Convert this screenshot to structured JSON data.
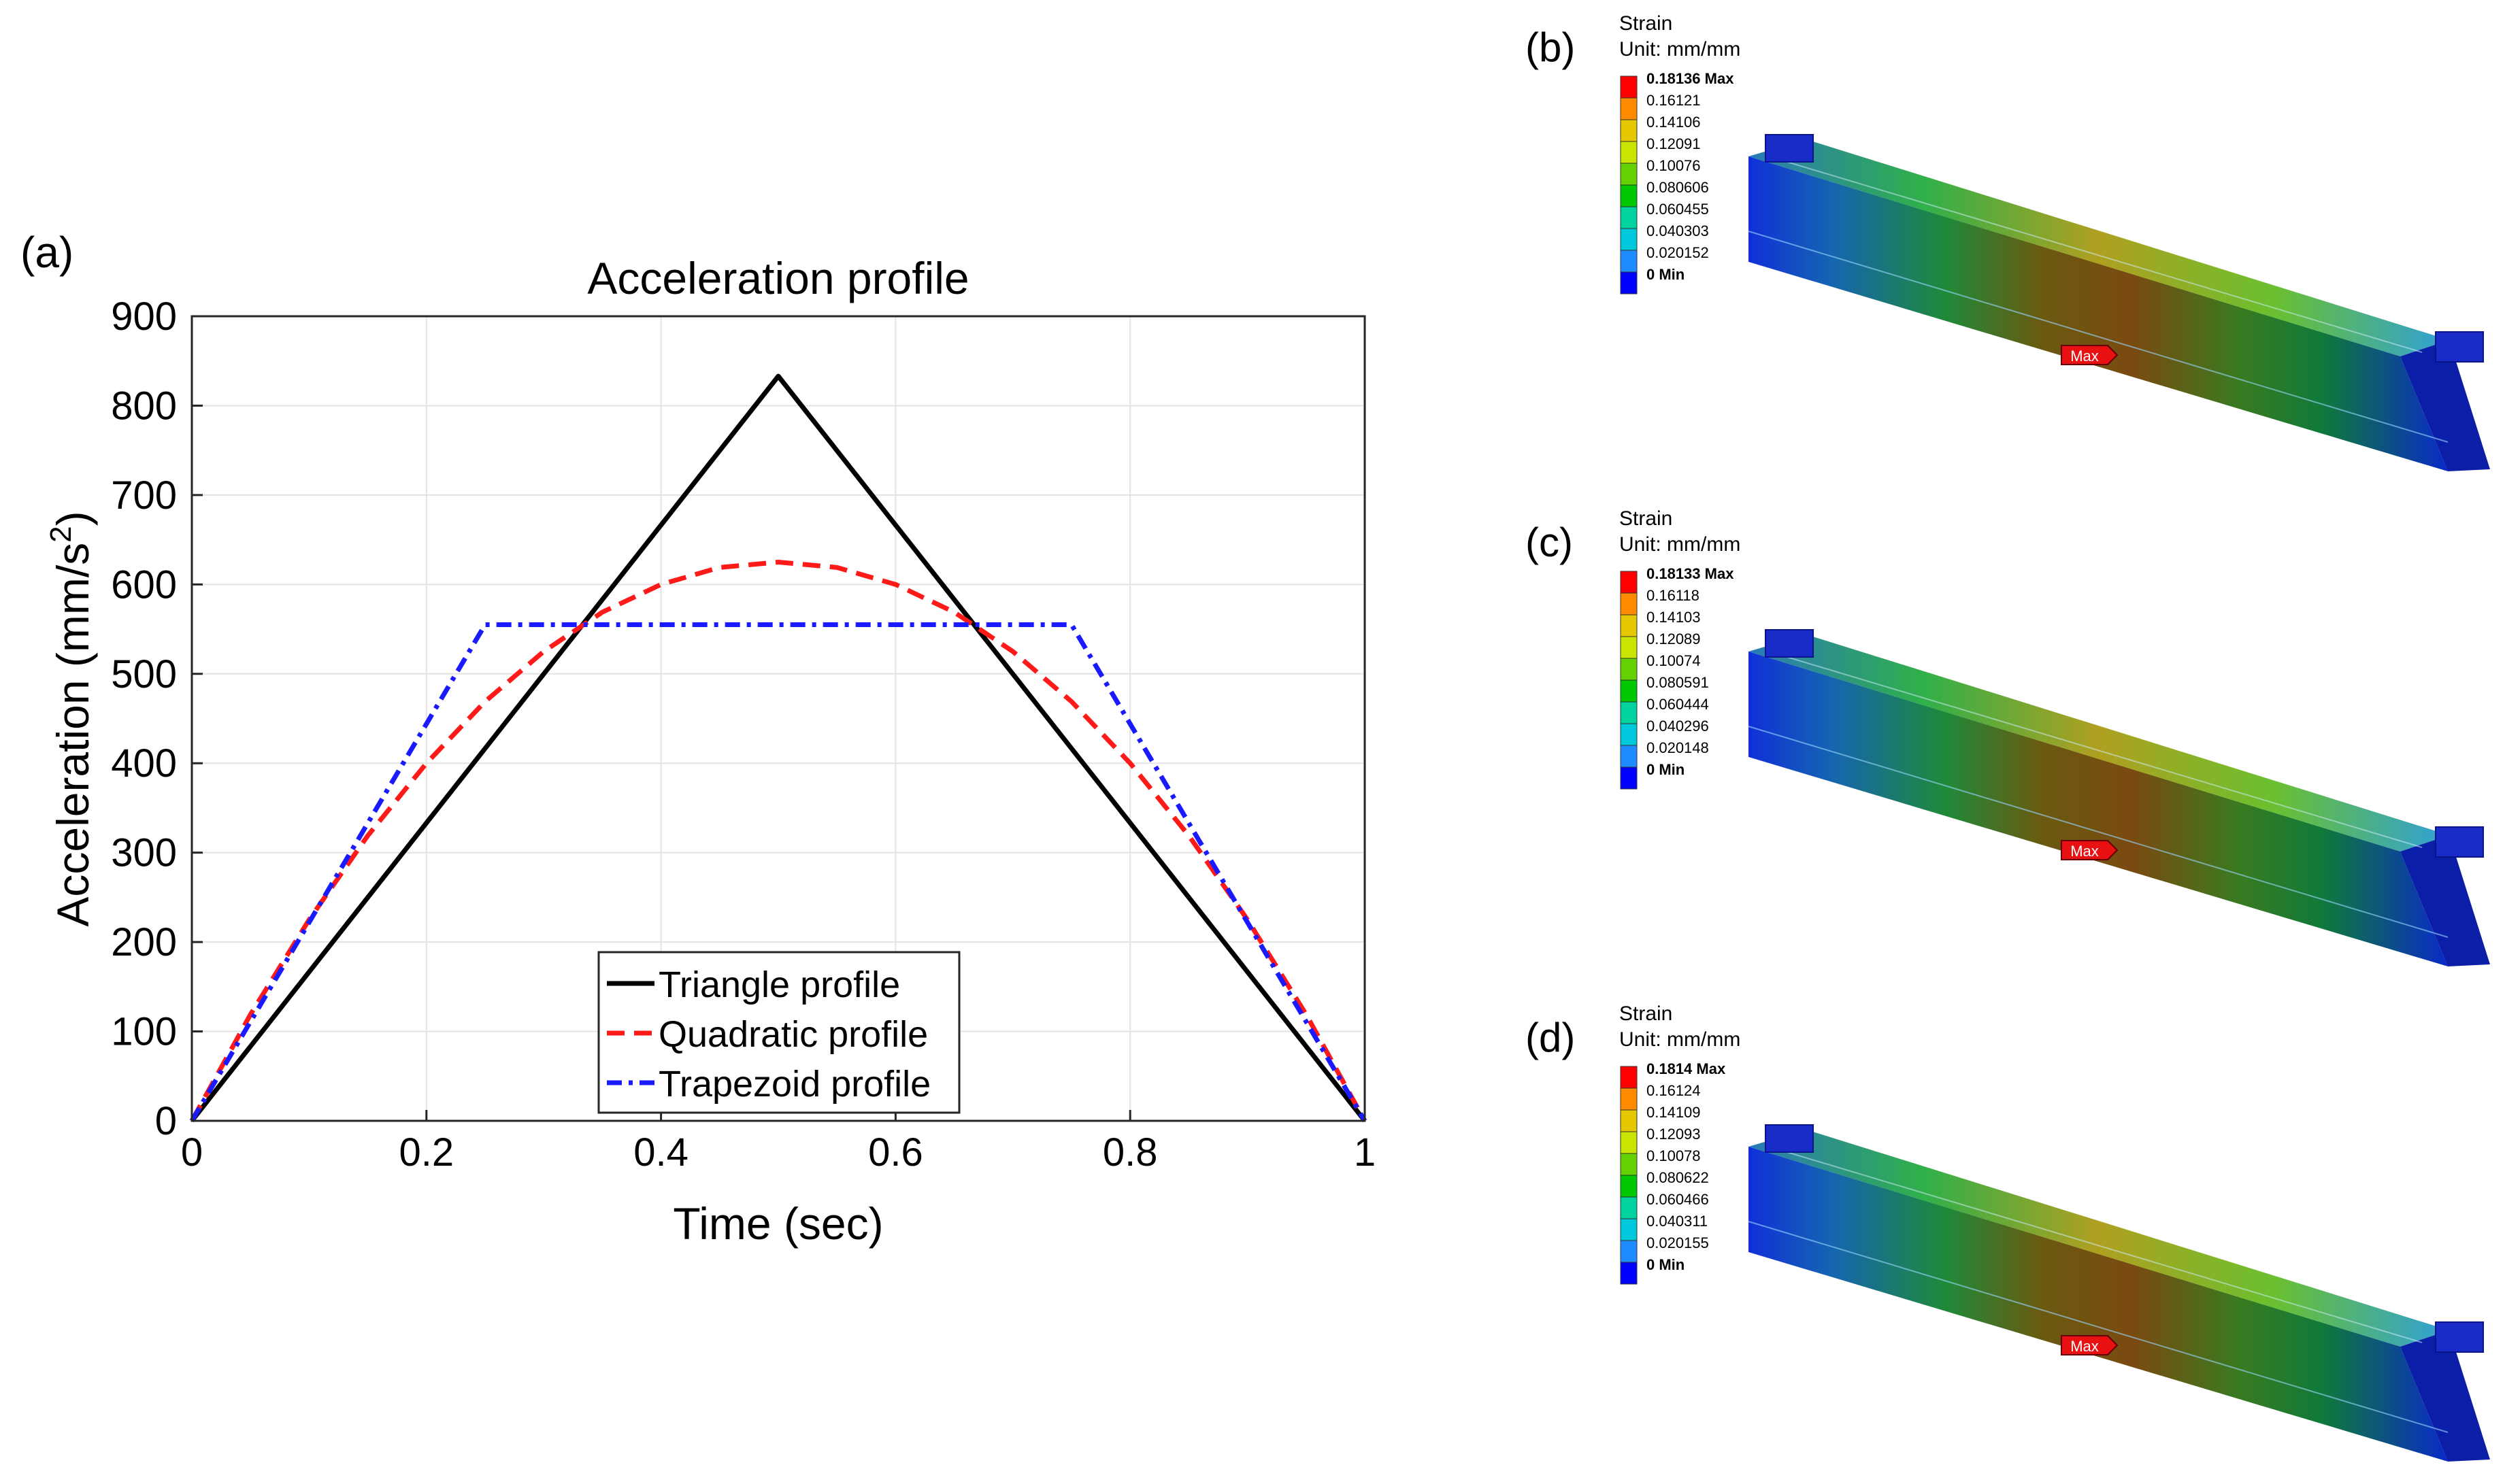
{
  "chart_data": {
    "type": "line",
    "panel_label": "(a)",
    "title": "Acceleration profile",
    "xlabel": "Time (sec)",
    "ylabel_main": "Acceleration (mm/s",
    "ylabel_sup": "2",
    "ylabel_close": ")",
    "xlim": [
      0,
      1
    ],
    "ylim": [
      0,
      900
    ],
    "xticks": [
      0,
      0.2,
      0.4,
      0.6,
      0.8,
      1
    ],
    "xtick_labels": [
      "0",
      "0.2",
      "0.4",
      "0.6",
      "0.8",
      "1"
    ],
    "yticks": [
      0,
      100,
      200,
      300,
      400,
      500,
      600,
      700,
      800,
      900
    ],
    "ytick_labels": [
      "0",
      "100",
      "200",
      "300",
      "400",
      "500",
      "600",
      "700",
      "800",
      "900"
    ],
    "grid": true,
    "legend_position": "bottom-center",
    "series": [
      {
        "name": "Triangle profile",
        "style": "solid",
        "color": "#000000",
        "x": [
          0,
          0.5,
          1
        ],
        "y": [
          0,
          833,
          0
        ]
      },
      {
        "name": "Quadratic profile",
        "style": "dashed",
        "color": "#ff1a1a",
        "x": [
          0,
          0.05,
          0.1,
          0.15,
          0.2,
          0.25,
          0.3,
          0.35,
          0.4,
          0.45,
          0.5,
          0.55,
          0.6,
          0.65,
          0.7,
          0.75,
          0.8,
          0.85,
          0.9,
          0.95,
          1
        ],
        "y": [
          0,
          119,
          225,
          319,
          400,
          469,
          525,
          569,
          600,
          619,
          625,
          619,
          600,
          569,
          525,
          469,
          400,
          319,
          225,
          119,
          0
        ]
      },
      {
        "name": "Trapezoid profile",
        "style": "dashdot",
        "color": "#1a1aff",
        "x": [
          0,
          0.25,
          0.75,
          1
        ],
        "y": [
          0,
          555,
          555,
          0
        ]
      }
    ]
  },
  "fea_panels": [
    {
      "label": "(b)",
      "title": "Strain",
      "unit": "Unit: mm/mm",
      "legend": [
        "0.18136 Max",
        "0.16121",
        "0.14106",
        "0.12091",
        "0.10076",
        "0.080606",
        "0.060455",
        "0.040303",
        "0.020152",
        "0 Min"
      ],
      "marker": "Max"
    },
    {
      "label": "(c)",
      "title": "Strain",
      "unit": "Unit: mm/mm",
      "legend": [
        "0.18133 Max",
        "0.16118",
        "0.14103",
        "0.12089",
        "0.10074",
        "0.080591",
        "0.060444",
        "0.040296",
        "0.020148",
        "0 Min"
      ],
      "marker": "Max"
    },
    {
      "label": "(d)",
      "title": "Strain",
      "unit": "Unit: mm/mm",
      "legend": [
        "0.1814 Max",
        "0.16124",
        "0.14109",
        "0.12093",
        "0.10078",
        "0.080622",
        "0.060466",
        "0.040311",
        "0.020155",
        "0 Min"
      ],
      "marker": "Max"
    }
  ],
  "colors": {
    "colorbar": [
      "#ff0000",
      "#ff8c00",
      "#e6c800",
      "#c8e600",
      "#64d200",
      "#00c800",
      "#00d2a0",
      "#00c8dc",
      "#1e8cff",
      "#0000ff"
    ]
  }
}
